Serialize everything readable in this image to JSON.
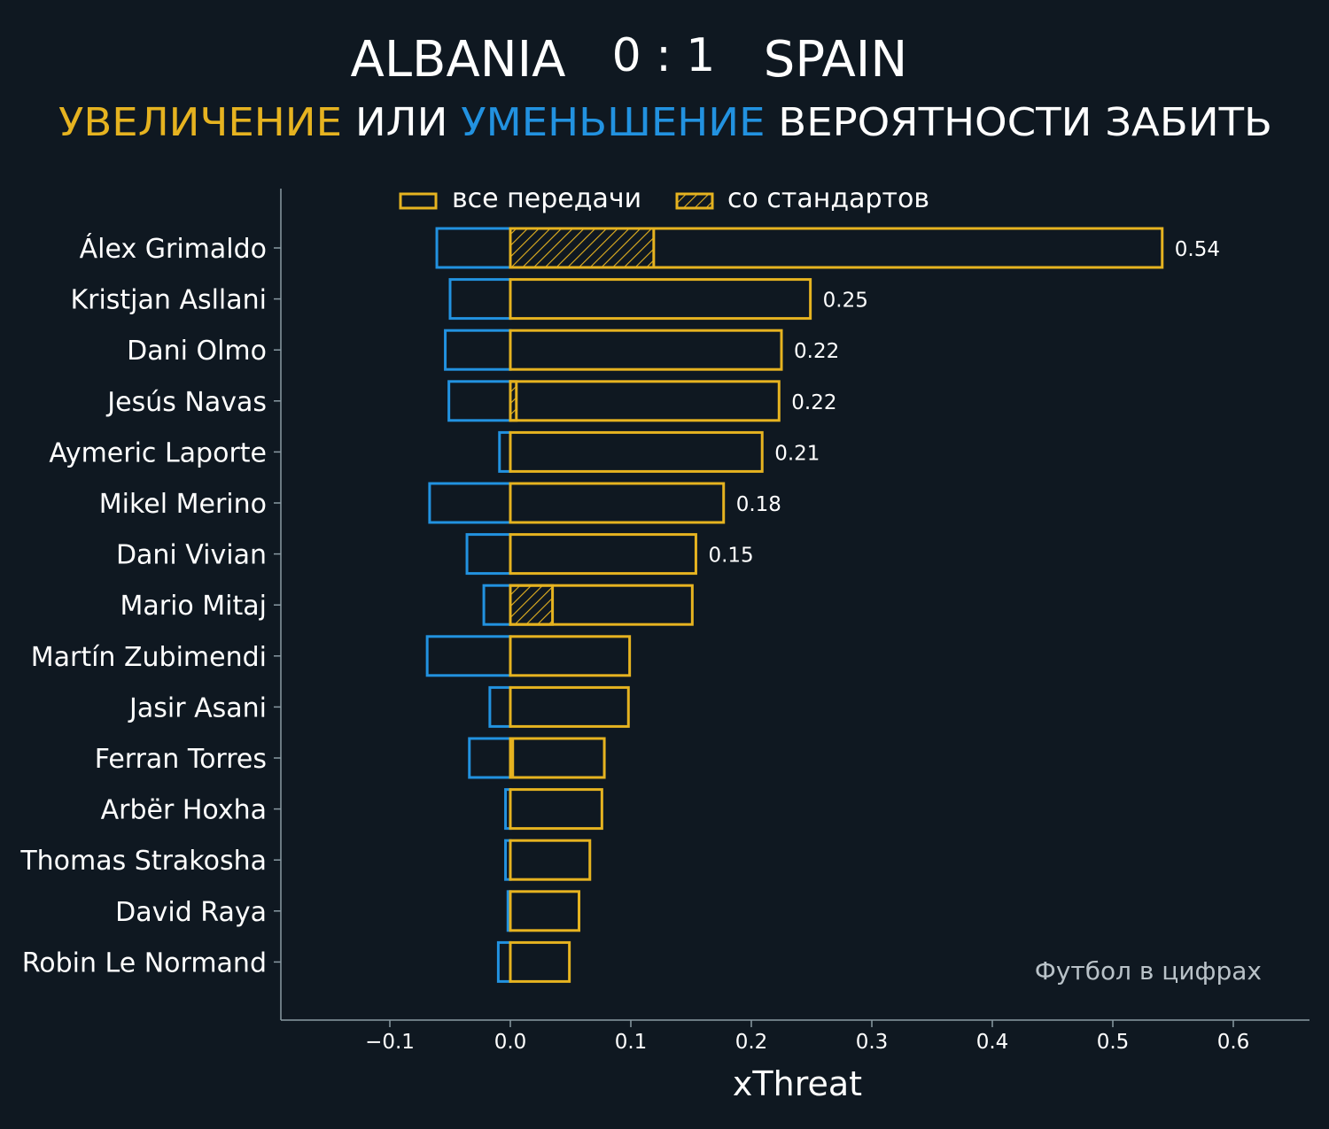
{
  "header": {
    "home_team": "ALBANIA",
    "score": "0 : 1",
    "away_team": "SPAIN",
    "subtitle_increase": "УВЕЛИЧЕНИЕ",
    "subtitle_or": "ИЛИ",
    "subtitle_decrease": "УМЕНЬШЕНИЕ",
    "subtitle_rest": "ВЕРОЯТНОСТИ ЗАБИТЬ"
  },
  "legend": {
    "all_passes": "все передачи",
    "set_pieces": "со стандартов"
  },
  "watermark": "Футбол в цифрах",
  "colors": {
    "background": "#0f1821",
    "increase": "#e6b320",
    "decrease": "#2292e0",
    "text": "#ffffff",
    "axis": "#8a9aa3"
  },
  "chart_data": {
    "type": "bar",
    "orientation": "horizontal",
    "xlabel": "xThreat",
    "xlim": [
      -0.19,
      0.665
    ],
    "xticks": [
      -0.1,
      0.0,
      0.1,
      0.2,
      0.3,
      0.4,
      0.5,
      0.6
    ],
    "xtick_labels": [
      "−0.1",
      "0.0",
      "0.1",
      "0.2",
      "0.3",
      "0.4",
      "0.5",
      "0.6"
    ],
    "categories": [
      "Álex Grimaldo",
      "Kristjan Asllani",
      "Dani Olmo",
      "Jesús Navas",
      "Aymeric Laporte",
      "Mikel Merino",
      "Dani Vivian",
      "Mario Mitaj",
      "Martín Zubimendi",
      "Jasir Asani",
      "Ferran Torres",
      "Arbër Hoxha",
      "Thomas Strakosha",
      "David Raya",
      "Robin Le Normand"
    ],
    "series": [
      {
        "name": "все передачи (увеличение)",
        "values": [
          0.541,
          0.249,
          0.225,
          0.223,
          0.209,
          0.177,
          0.154,
          0.151,
          0.099,
          0.098,
          0.078,
          0.076,
          0.066,
          0.057,
          0.049
        ]
      },
      {
        "name": "все передачи (уменьшение)",
        "values": [
          -0.061,
          -0.05,
          -0.054,
          -0.051,
          -0.009,
          -0.067,
          -0.036,
          -0.022,
          -0.069,
          -0.017,
          -0.034,
          -0.004,
          -0.004,
          -0.002,
          -0.01
        ]
      },
      {
        "name": "со стандартов",
        "values": [
          0.119,
          0,
          0,
          0.005,
          0,
          0,
          0,
          0.035,
          0,
          0,
          0.002,
          0,
          0,
          0,
          0
        ]
      }
    ],
    "value_labels": [
      "0.54",
      "0.25",
      "0.22",
      "0.22",
      "0.21",
      "0.18",
      "0.15",
      "",
      "",
      "",
      "",
      "",
      "",
      "",
      ""
    ]
  }
}
